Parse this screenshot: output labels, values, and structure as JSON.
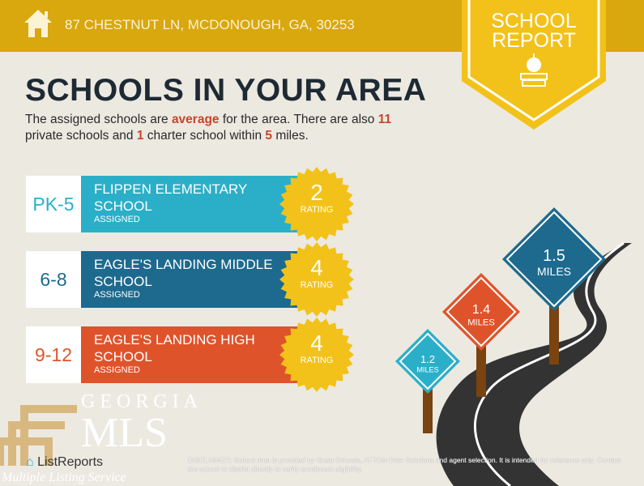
{
  "header": {
    "address": "87 CHESTNUT LN, MCDONOUGH, GA, 30253",
    "badge_line1": "SCHOOL",
    "badge_line2": "REPORT"
  },
  "title": "SCHOOLS IN YOUR AREA",
  "subtitle": {
    "p1": "The assigned schools are ",
    "quality": "average",
    "p2": " for the area. There are also ",
    "private_count": "11",
    "p3": " private schools and ",
    "charter_count": "1",
    "p4": " charter school within ",
    "radius": "5",
    "p5": " miles."
  },
  "schools": [
    {
      "grade": "PK-5",
      "name": "FLIPPEN ELEMENTARY SCHOOL",
      "status": "ASSIGNED",
      "rating": "2",
      "rating_label": "RATING",
      "color": "#2BAFC9"
    },
    {
      "grade": "6-8",
      "name": "EAGLE'S LANDING MIDDLE SCHOOL",
      "status": "ASSIGNED",
      "rating": "4",
      "rating_label": "RATING",
      "color": "#1D6A8E"
    },
    {
      "grade": "9-12",
      "name": "EAGLE'S LANDING HIGH SCHOOL",
      "status": "ASSIGNED",
      "rating": "4",
      "rating_label": "RATING",
      "color": "#DF532B"
    }
  ],
  "signs": [
    {
      "value": "1.2",
      "unit": "MILES",
      "color": "#2BAFC9"
    },
    {
      "value": "1.4",
      "unit": "MILES",
      "color": "#DF532B"
    },
    {
      "value": "1.5",
      "unit": "MILES",
      "color": "#1D6A8E"
    }
  ],
  "watermark": {
    "georgia": "GEORGIA",
    "mls": "MLS",
    "service": "Multiple Listing Service"
  },
  "footer": {
    "brand": "ListReports",
    "disclaimer": "DISCLAIMER: School data is provided by Great Schools, ATTOM Data Solutions and agent selection. It is intended for reference only. Contact the school or district directly to verify enrollment eligibility."
  }
}
